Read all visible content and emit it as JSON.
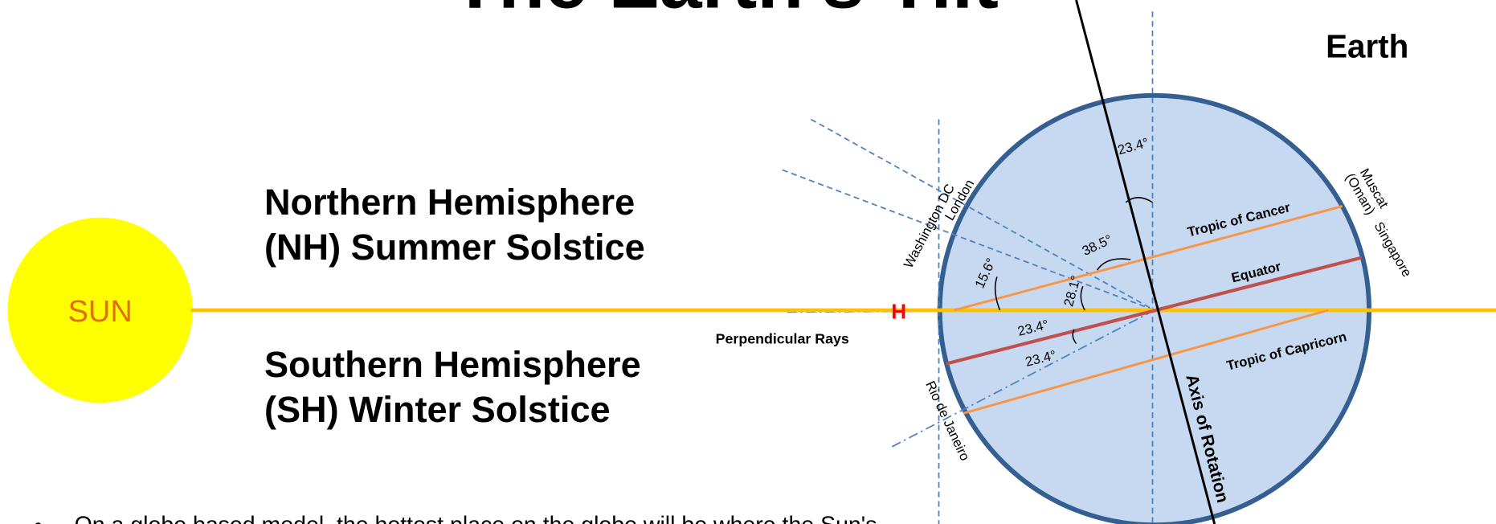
{
  "title": "The Earth's Tilt",
  "earth_label": "Earth",
  "sun_label": "SUN",
  "northern": {
    "line1": "Northern Hemisphere",
    "line2": "(NH) Summer Solstice"
  },
  "southern": {
    "line1": "Southern Hemisphere",
    "line2": "(SH) Winter Solstice"
  },
  "marker": "H",
  "perpendicular_rays": "Perpendicular Rays",
  "places": {
    "washington_dc": "Washington DC",
    "london": "London",
    "muscat": "Muscat",
    "oman": "(Oman)",
    "singapore": "Singapore",
    "rio": "Rio de Janeiro"
  },
  "lines": {
    "tropic_cancer": "Tropic of Cancer",
    "equator": "Equator",
    "tropic_capricorn": "Tropic of Capricorn",
    "axis": "Axis of Rotation"
  },
  "angles": {
    "axis_tilt": "23.4°",
    "london": "38.5°",
    "washington": "15.6°",
    "singapore": "28.1°",
    "equator_tilt": "23.4°",
    "capricorn_tilt": "23.4°"
  },
  "bullet": "On a globe based model, the hottest place on the globe will be where the Sun's"
}
